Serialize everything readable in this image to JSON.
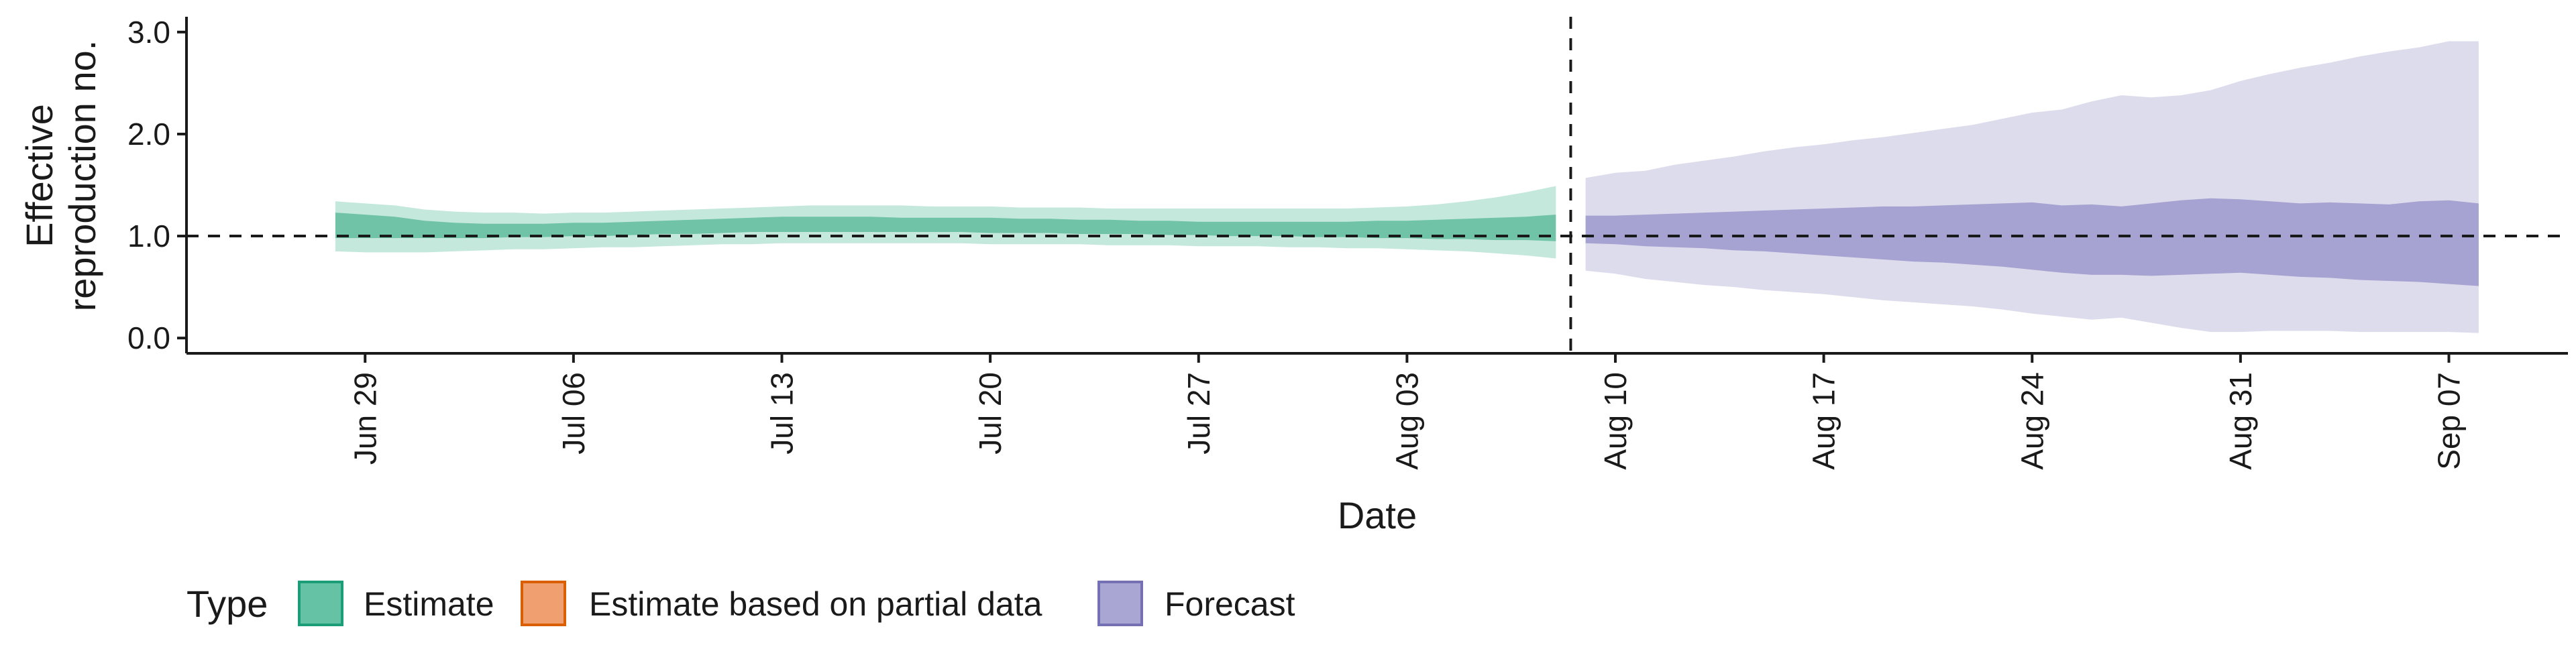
{
  "chart_data": {
    "type": "area",
    "xlabel": "Date",
    "ylabel_lines": [
      "Effective",
      "reproduction no."
    ],
    "ylim": [
      0,
      3.0
    ],
    "y_ticks": [
      {
        "value": 0.0,
        "label": "0.0"
      },
      {
        "value": 1.0,
        "label": "1.0"
      },
      {
        "value": 2.0,
        "label": "2.0"
      },
      {
        "value": 3.0,
        "label": "3.0"
      }
    ],
    "x_range": [
      "2020-06-23",
      "2020-09-11"
    ],
    "x_ticks": [
      {
        "date": "2020-06-29",
        "label": "Jun 29"
      },
      {
        "date": "2020-07-06",
        "label": "Jul 06"
      },
      {
        "date": "2020-07-13",
        "label": "Jul 13"
      },
      {
        "date": "2020-07-20",
        "label": "Jul 20"
      },
      {
        "date": "2020-07-27",
        "label": "Jul 27"
      },
      {
        "date": "2020-08-03",
        "label": "Aug 03"
      },
      {
        "date": "2020-08-10",
        "label": "Aug 10"
      },
      {
        "date": "2020-08-17",
        "label": "Aug 17"
      },
      {
        "date": "2020-08-24",
        "label": "Aug 24"
      },
      {
        "date": "2020-08-31",
        "label": "Aug 31"
      },
      {
        "date": "2020-09-07",
        "label": "Sep 07"
      }
    ],
    "reference_line_y": 1.0,
    "forecast_boundary_date": "2020-08-09",
    "grid": false,
    "legend": {
      "title": "Type",
      "placement": "bottom-left",
      "entries": [
        {
          "key": "estimate",
          "label": "Estimate",
          "fill": "#66c2a5",
          "stroke": "#1b9e77"
        },
        {
          "key": "partial",
          "label": "Estimate based on partial data",
          "fill": "#f0a070",
          "stroke": "#d95f02"
        },
        {
          "key": "forecast",
          "label": "Forecast",
          "fill": "#aaa6d4",
          "stroke": "#7570b3"
        }
      ]
    },
    "colors": {
      "estimate_outer": "#c4e8dc",
      "estimate_inner": "#70c3a6",
      "forecast_outer": "#dddcec",
      "forecast_inner": "#a6a2d1"
    },
    "series": [
      {
        "name": "Estimate",
        "x": [
          "2020-06-28",
          "2020-06-29",
          "2020-06-30",
          "2020-07-01",
          "2020-07-02",
          "2020-07-03",
          "2020-07-04",
          "2020-07-05",
          "2020-07-06",
          "2020-07-07",
          "2020-07-08",
          "2020-07-09",
          "2020-07-10",
          "2020-07-11",
          "2020-07-12",
          "2020-07-13",
          "2020-07-14",
          "2020-07-15",
          "2020-07-16",
          "2020-07-17",
          "2020-07-18",
          "2020-07-19",
          "2020-07-20",
          "2020-07-21",
          "2020-07-22",
          "2020-07-23",
          "2020-07-24",
          "2020-07-25",
          "2020-07-26",
          "2020-07-27",
          "2020-07-28",
          "2020-07-29",
          "2020-07-30",
          "2020-07-31",
          "2020-08-01",
          "2020-08-02",
          "2020-08-03",
          "2020-08-04",
          "2020-08-05",
          "2020-08-06",
          "2020-08-07",
          "2020-08-08"
        ],
        "lower90": [
          0.85,
          0.84,
          0.84,
          0.84,
          0.85,
          0.86,
          0.87,
          0.87,
          0.88,
          0.89,
          0.89,
          0.9,
          0.91,
          0.92,
          0.92,
          0.93,
          0.93,
          0.93,
          0.93,
          0.93,
          0.93,
          0.93,
          0.92,
          0.92,
          0.92,
          0.92,
          0.91,
          0.91,
          0.91,
          0.9,
          0.9,
          0.9,
          0.89,
          0.89,
          0.88,
          0.88,
          0.87,
          0.86,
          0.85,
          0.83,
          0.81,
          0.78
        ],
        "upper90": [
          1.34,
          1.32,
          1.3,
          1.26,
          1.24,
          1.23,
          1.23,
          1.22,
          1.23,
          1.23,
          1.24,
          1.25,
          1.26,
          1.27,
          1.28,
          1.29,
          1.3,
          1.3,
          1.3,
          1.3,
          1.29,
          1.29,
          1.29,
          1.28,
          1.28,
          1.28,
          1.27,
          1.27,
          1.27,
          1.27,
          1.27,
          1.27,
          1.27,
          1.27,
          1.27,
          1.28,
          1.29,
          1.31,
          1.34,
          1.38,
          1.43,
          1.49
        ],
        "lower50": [
          0.98,
          0.98,
          0.98,
          0.98,
          0.98,
          0.98,
          0.99,
          0.99,
          1.0,
          1.0,
          1.01,
          1.02,
          1.02,
          1.03,
          1.04,
          1.04,
          1.04,
          1.04,
          1.04,
          1.04,
          1.04,
          1.04,
          1.03,
          1.03,
          1.03,
          1.02,
          1.02,
          1.02,
          1.01,
          1.01,
          1.0,
          1.0,
          1.0,
          0.99,
          0.99,
          0.98,
          0.98,
          0.97,
          0.97,
          0.96,
          0.96,
          0.95
        ],
        "upper50": [
          1.23,
          1.21,
          1.19,
          1.15,
          1.13,
          1.12,
          1.12,
          1.12,
          1.13,
          1.13,
          1.14,
          1.15,
          1.16,
          1.17,
          1.18,
          1.19,
          1.19,
          1.19,
          1.19,
          1.18,
          1.18,
          1.18,
          1.18,
          1.17,
          1.17,
          1.16,
          1.16,
          1.15,
          1.15,
          1.14,
          1.14,
          1.14,
          1.14,
          1.14,
          1.14,
          1.15,
          1.15,
          1.16,
          1.17,
          1.18,
          1.19,
          1.21
        ]
      },
      {
        "name": "Forecast",
        "x": [
          "2020-08-09",
          "2020-08-10",
          "2020-08-11",
          "2020-08-12",
          "2020-08-13",
          "2020-08-14",
          "2020-08-15",
          "2020-08-16",
          "2020-08-17",
          "2020-08-18",
          "2020-08-19",
          "2020-08-20",
          "2020-08-21",
          "2020-08-22",
          "2020-08-23",
          "2020-08-24",
          "2020-08-25",
          "2020-08-26",
          "2020-08-27",
          "2020-08-28",
          "2020-08-29",
          "2020-08-30",
          "2020-08-31",
          "2020-09-01",
          "2020-09-02",
          "2020-09-03",
          "2020-09-04",
          "2020-09-05",
          "2020-09-06",
          "2020-09-07",
          "2020-09-08"
        ],
        "lower90": [
          0.66,
          0.63,
          0.58,
          0.55,
          0.52,
          0.5,
          0.47,
          0.45,
          0.43,
          0.4,
          0.37,
          0.35,
          0.33,
          0.31,
          0.28,
          0.24,
          0.21,
          0.18,
          0.2,
          0.15,
          0.1,
          0.06,
          0.06,
          0.07,
          0.07,
          0.07,
          0.06,
          0.06,
          0.06,
          0.06,
          0.05
        ],
        "upper90": [
          1.57,
          1.62,
          1.64,
          1.7,
          1.74,
          1.78,
          1.83,
          1.87,
          1.9,
          1.94,
          1.97,
          2.01,
          2.05,
          2.09,
          2.15,
          2.21,
          2.24,
          2.32,
          2.38,
          2.36,
          2.38,
          2.43,
          2.52,
          2.59,
          2.65,
          2.7,
          2.76,
          2.81,
          2.85,
          2.91,
          2.91
        ],
        "lower50": [
          0.93,
          0.92,
          0.9,
          0.89,
          0.88,
          0.86,
          0.85,
          0.83,
          0.81,
          0.79,
          0.77,
          0.75,
          0.74,
          0.72,
          0.7,
          0.67,
          0.64,
          0.62,
          0.62,
          0.61,
          0.62,
          0.63,
          0.64,
          0.62,
          0.6,
          0.59,
          0.57,
          0.56,
          0.55,
          0.53,
          0.51
        ],
        "upper50": [
          1.2,
          1.2,
          1.21,
          1.22,
          1.23,
          1.24,
          1.25,
          1.26,
          1.27,
          1.28,
          1.29,
          1.29,
          1.3,
          1.31,
          1.32,
          1.33,
          1.3,
          1.31,
          1.29,
          1.32,
          1.35,
          1.37,
          1.36,
          1.34,
          1.32,
          1.33,
          1.32,
          1.31,
          1.34,
          1.35,
          1.32
        ]
      }
    ]
  }
}
